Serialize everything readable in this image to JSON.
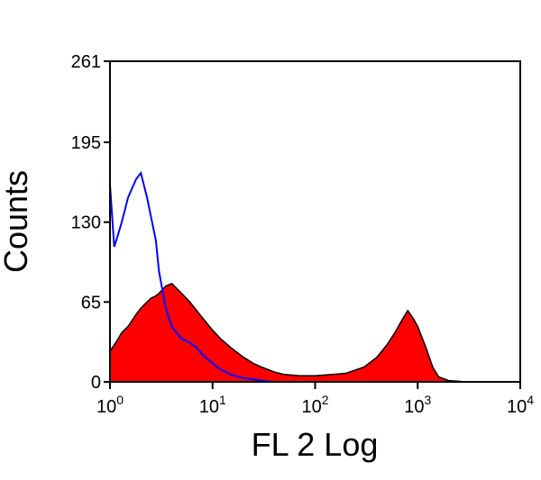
{
  "chart_data": {
    "type": "area",
    "x_label": "FL 2 Log",
    "y_label": "Counts",
    "log_x": true,
    "xlim": [
      1,
      10000
    ],
    "xticks": [
      {
        "value": 1,
        "label": "10",
        "exponent": "0"
      },
      {
        "value": 10,
        "label": "10",
        "exponent": "1"
      },
      {
        "value": 100,
        "label": "10",
        "exponent": "2"
      },
      {
        "value": 1000,
        "label": "10",
        "exponent": "3"
      },
      {
        "value": 10000,
        "label": "10",
        "exponent": "4"
      }
    ],
    "ylim": [
      0,
      261
    ],
    "yticks": [
      0,
      65,
      130,
      195,
      261
    ],
    "x": [
      1,
      1.1,
      1.2,
      1.3,
      1.5,
      1.8,
      2,
      2.3,
      2.5,
      2.8,
      3,
      3.5,
      4,
      5,
      6,
      7,
      8,
      10,
      12,
      15,
      20,
      25,
      30,
      40,
      50,
      70,
      100,
      150,
      200,
      300,
      400,
      500,
      600,
      700,
      800,
      900,
      1000,
      1200,
      1400,
      1600,
      2000,
      3000
    ],
    "series": [
      {
        "color": "#ff0000",
        "outline": "#000000",
        "fill": true,
        "values": [
          25,
          30,
          35,
          40,
          45,
          55,
          60,
          65,
          68,
          70,
          72,
          78,
          80,
          72,
          65,
          58,
          52,
          42,
          35,
          28,
          20,
          15,
          12,
          8,
          6,
          5,
          5,
          6,
          7,
          12,
          20,
          30,
          40,
          50,
          58,
          52,
          45,
          28,
          12,
          4,
          1,
          0
        ]
      },
      {
        "color": "#0000ff",
        "fill": false,
        "values": [
          160,
          110,
          120,
          130,
          150,
          165,
          170,
          150,
          135,
          115,
          90,
          60,
          45,
          35,
          32,
          28,
          22,
          15,
          10,
          6,
          3,
          2,
          1,
          0,
          null,
          null,
          null,
          null,
          null,
          null,
          null,
          null,
          null,
          null,
          null,
          null,
          null,
          null,
          null,
          null,
          null,
          null
        ]
      }
    ]
  }
}
